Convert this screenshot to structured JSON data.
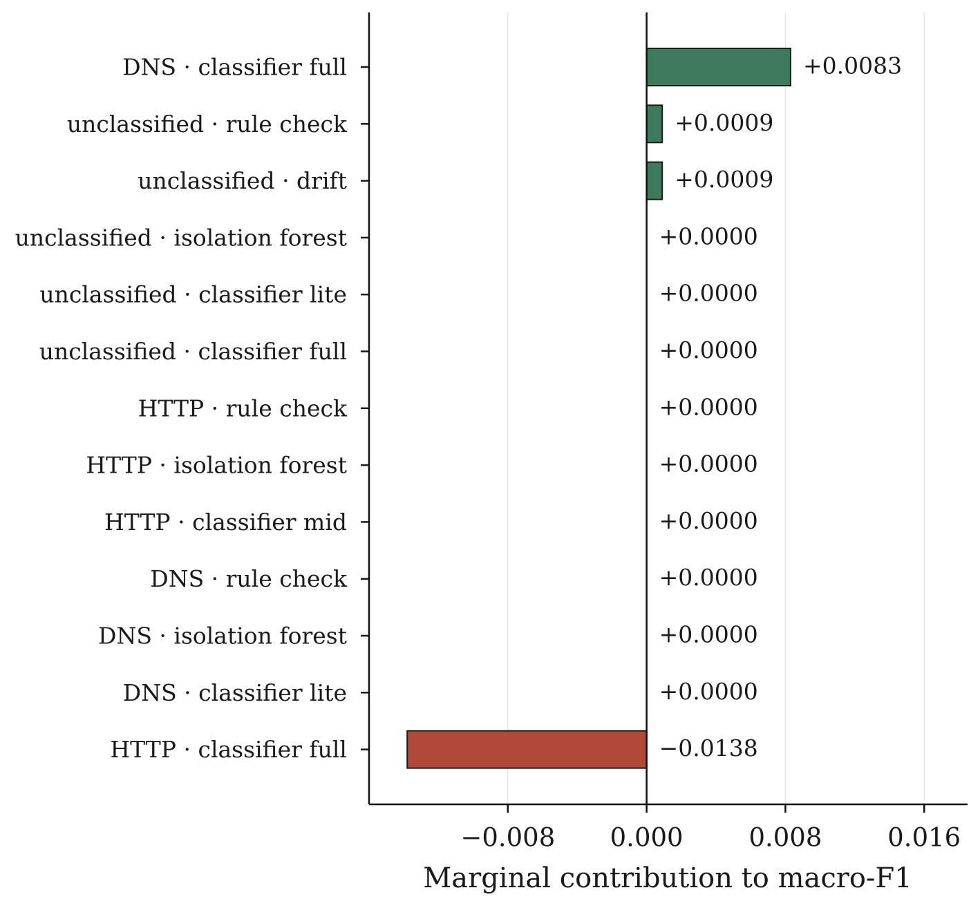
{
  "chart_data": {
    "type": "bar",
    "orientation": "horizontal",
    "xlabel": "Marginal contribution to macro-F1",
    "ylabel": "",
    "title": "",
    "xlim": [
      -0.016,
      0.0185
    ],
    "xticks": [
      -0.008,
      0.0,
      0.008,
      0.016
    ],
    "xtick_labels": [
      "−0.008",
      "0.000",
      "0.008",
      "0.016"
    ],
    "grid": "vertical",
    "categories": [
      "DNS · classifier full",
      "unclassified · rule check",
      "unclassified · drift",
      "unclassified · isolation forest",
      "unclassified · classifier lite",
      "unclassified · classifier full",
      "HTTP · rule check",
      "HTTP · isolation forest",
      "HTTP · classifier mid",
      "DNS · rule check",
      "DNS · isolation forest",
      "DNS · classifier lite",
      "HTTP · classifier full"
    ],
    "values": [
      0.0083,
      0.0009,
      0.0009,
      0.0,
      0.0,
      0.0,
      0.0,
      0.0,
      0.0,
      0.0,
      0.0,
      0.0,
      -0.0138
    ],
    "value_labels": [
      "+0.0083",
      "+0.0009",
      "+0.0009",
      "+0.0000",
      "+0.0000",
      "+0.0000",
      "+0.0000",
      "+0.0000",
      "+0.0000",
      "+0.0000",
      "+0.0000",
      "+0.0000",
      "−0.0138"
    ],
    "colors": {
      "positive": "#3d7a5c",
      "negative": "#b0493a",
      "edge": "#1a1a1a",
      "grid": "#e6e6e6"
    }
  }
}
